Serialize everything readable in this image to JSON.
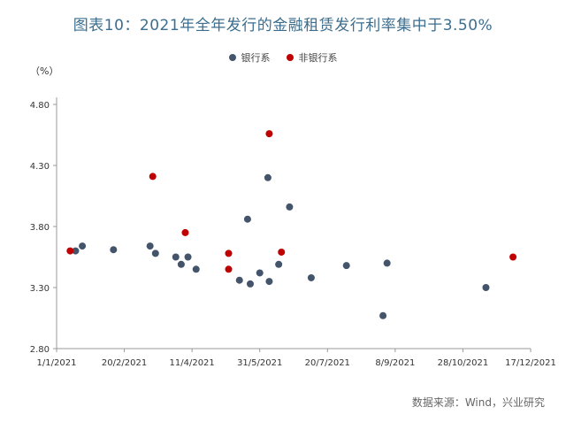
{
  "title": "图表10：2021年全年发行的金融租赁发行利率集中于3.50%",
  "source": "数据来源：Wind，兴业研究",
  "colors": {
    "title": "#3b6e8f",
    "bank": "#44546a",
    "nonbank": "#c00000"
  },
  "chart_data": {
    "type": "scatter",
    "title": "图表10：2021年全年发行的金融租赁发行利率集中于3.50%",
    "unit_label": "（%）",
    "x_type": "date",
    "xlim": [
      "2021-01-01",
      "2021-12-17"
    ],
    "x_ticks": [
      "2021-01-01",
      "2021-02-20",
      "2021-04-11",
      "2021-05-31",
      "2021-07-20",
      "2021-09-08",
      "2021-10-28",
      "2021-12-17"
    ],
    "x_tick_labels": [
      "1/1/2021",
      "20/2/2021",
      "11/4/2021",
      "31/5/2021",
      "20/7/2021",
      "8/9/2021",
      "28/10/2021",
      "17/12/2021"
    ],
    "ylim": [
      2.8,
      4.8
    ],
    "y_ticks": [
      2.8,
      3.3,
      3.8,
      4.3,
      4.8
    ],
    "y_tick_labels": [
      "2.80",
      "3.30",
      "3.80",
      "4.30",
      "4.80"
    ],
    "grid": false,
    "legend_position": "top-center",
    "series": [
      {
        "name": "银行系",
        "color": "#44546a",
        "points": [
          [
            "2021-01-15",
            3.6
          ],
          [
            "2021-01-20",
            3.64
          ],
          [
            "2021-02-12",
            3.61
          ],
          [
            "2021-03-11",
            3.64
          ],
          [
            "2021-03-15",
            3.58
          ],
          [
            "2021-03-30",
            3.55
          ],
          [
            "2021-04-03",
            3.49
          ],
          [
            "2021-04-08",
            3.55
          ],
          [
            "2021-04-14",
            3.45
          ],
          [
            "2021-05-16",
            3.36
          ],
          [
            "2021-05-22",
            3.86
          ],
          [
            "2021-05-24",
            3.33
          ],
          [
            "2021-05-31",
            3.42
          ],
          [
            "2021-06-06",
            4.2
          ],
          [
            "2021-06-07",
            3.35
          ],
          [
            "2021-06-14",
            3.49
          ],
          [
            "2021-06-22",
            3.96
          ],
          [
            "2021-07-08",
            3.38
          ],
          [
            "2021-08-03",
            3.48
          ],
          [
            "2021-08-30",
            3.07
          ],
          [
            "2021-09-02",
            3.5
          ],
          [
            "2021-11-14",
            3.3
          ]
        ]
      },
      {
        "name": "非银行系",
        "color": "#c00000",
        "points": [
          [
            "2021-01-11",
            3.6
          ],
          [
            "2021-03-13",
            4.21
          ],
          [
            "2021-04-06",
            3.75
          ],
          [
            "2021-05-08",
            3.58
          ],
          [
            "2021-05-08",
            3.45
          ],
          [
            "2021-06-07",
            4.56
          ],
          [
            "2021-06-16",
            3.59
          ],
          [
            "2021-12-04",
            3.55
          ]
        ]
      }
    ]
  }
}
